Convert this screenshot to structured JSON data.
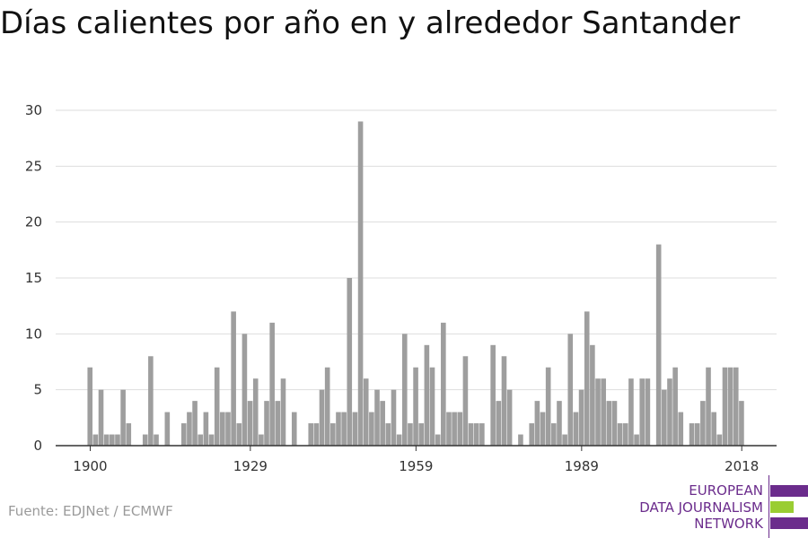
{
  "chart_data": {
    "type": "bar",
    "title": "Días calientes por año en y alrededor Santander",
    "x_start": 1900,
    "x_end": 2018,
    "x_ticks": [
      "1900",
      "1929",
      "1959",
      "1989",
      "2018"
    ],
    "y_ticks": [
      "0",
      "5",
      "10",
      "15",
      "20",
      "25",
      "30"
    ],
    "ylim": [
      0,
      30
    ],
    "grid": true,
    "bar_color": "#9e9e9e",
    "values": [
      7,
      1,
      5,
      1,
      1,
      1,
      5,
      2,
      0,
      0,
      1,
      8,
      1,
      0,
      3,
      0,
      0,
      2,
      3,
      4,
      1,
      3,
      1,
      7,
      3,
      3,
      12,
      2,
      10,
      4,
      6,
      1,
      4,
      11,
      4,
      6,
      0,
      3,
      0,
      0,
      2,
      2,
      5,
      7,
      2,
      3,
      3,
      15,
      3,
      29,
      6,
      3,
      5,
      4,
      2,
      5,
      1,
      10,
      2,
      7,
      2,
      9,
      7,
      1,
      11,
      3,
      3,
      3,
      8,
      2,
      2,
      2,
      0,
      9,
      4,
      8,
      5,
      0,
      1,
      0,
      2,
      4,
      3,
      7,
      2,
      4,
      1,
      10,
      3,
      5,
      12,
      9,
      6,
      6,
      4,
      4,
      2,
      2,
      6,
      1,
      6,
      6,
      0,
      18,
      5,
      6,
      7,
      3,
      0,
      2,
      2,
      4,
      7,
      3,
      1,
      7,
      7,
      7,
      4
    ]
  },
  "source": "Fuente: EDJNet / ECMWF",
  "logo": {
    "lines": [
      "EUROPEAN",
      "DATA JOURNALISM",
      "NETWORK"
    ],
    "colors": {
      "purple": "#6b2c8c",
      "green": "#9acd32"
    }
  }
}
